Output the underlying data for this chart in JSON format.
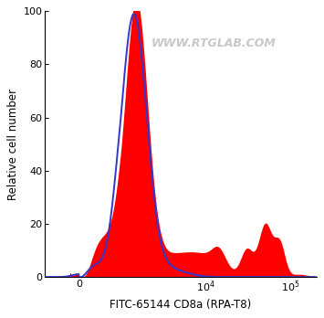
{
  "xlabel": "FITC-65144 CD8a (RPA-T8)",
  "ylabel": "Relative cell number",
  "ylim": [
    0,
    100
  ],
  "fill_color": "#FF0000",
  "line_color": "#3535CC",
  "background_color": "#FFFFFF",
  "watermark_color": "#C8C8C8",
  "watermark_text": "WWW.RTGLAB.COM",
  "figsize": [
    3.55,
    3.48
  ],
  "dpi": 100,
  "linthresh": 1000,
  "linscale": 0.45
}
